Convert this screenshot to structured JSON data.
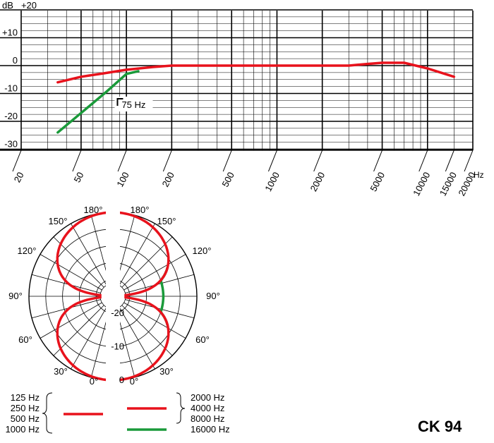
{
  "chart_data": [
    {
      "type": "line",
      "title": "",
      "xlabel": "",
      "x_unit": "Hz",
      "x_scale": "log",
      "xlim": [
        20,
        20000
      ],
      "ylim": [
        -35,
        20
      ],
      "y_unit": "dB",
      "x_tick_labels": [
        "20",
        "50",
        "100",
        "200",
        "500",
        "1000",
        "2000",
        "5000",
        "10000",
        "15000",
        "20000"
      ],
      "x_ticks": [
        20,
        50,
        100,
        200,
        500,
        1000,
        2000,
        5000,
        10000,
        15000,
        20000
      ],
      "y_tick_labels": [
        {
          "value": 20,
          "label": "+20"
        },
        {
          "value": 10,
          "label": "+10"
        },
        {
          "value": 0,
          "label": "0"
        },
        {
          "value": -10,
          "label": "-10"
        },
        {
          "value": -20,
          "label": "-20"
        },
        {
          "value": -30,
          "label": "-30"
        }
      ],
      "grid": true,
      "series": [
        {
          "color": "#e8121c",
          "x": [
            35,
            50,
            70,
            100,
            150,
            200,
            300,
            500,
            1000,
            2000,
            3000,
            4000,
            5000,
            7000,
            10000,
            15000
          ],
          "y": [
            -6,
            -4,
            -2.8,
            -1.5,
            -0.5,
            0,
            0,
            0,
            0,
            0,
            0,
            0.6,
            1,
            1,
            -1,
            -4
          ]
        },
        {
          "color": "#1a9a3a",
          "x": [
            35,
            50,
            75,
            100,
            120
          ],
          "y": [
            -24,
            -17,
            -9,
            -3,
            -2
          ]
        }
      ],
      "annotations": [
        {
          "text": "75 Hz",
          "x": 75
        }
      ]
    },
    {
      "type": "polar",
      "title": "",
      "radial_unit": "dB",
      "radial_tick_labels": [
        "-20",
        "-10",
        "0"
      ],
      "radial_range": [
        -25,
        0
      ],
      "angle_labels": [
        "0°",
        "30°",
        "60°",
        "90°",
        "120°",
        "150°",
        "180°"
      ],
      "angle_ticks_deg": [
        0,
        30,
        60,
        90,
        120,
        150,
        180
      ],
      "series": [
        {
          "side": "left",
          "color": "#e8121c",
          "legend": [
            "125 Hz",
            "250 Hz",
            "500 Hz",
            "1000 Hz"
          ],
          "pattern": "figure-eight"
        },
        {
          "side": "right",
          "color": "#e8121c",
          "legend": [
            "2000 Hz",
            "4000 Hz",
            "8000 Hz"
          ],
          "pattern": "figure-eight"
        },
        {
          "side": "right",
          "color": "#1a9a3a",
          "legend": [
            "16000 Hz"
          ],
          "pattern": "figure-eight-wide",
          "angle_range_deg": [
            70,
            110
          ]
        }
      ]
    }
  ],
  "model": "CK 94"
}
